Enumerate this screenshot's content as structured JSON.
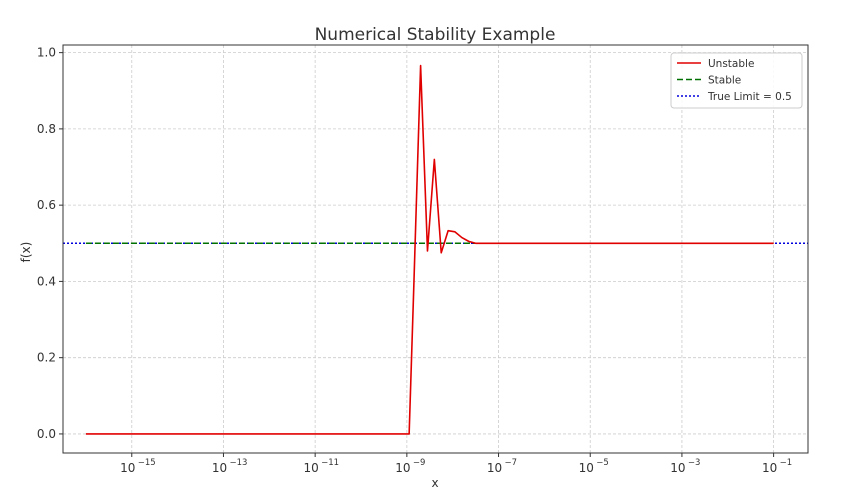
{
  "chart_data": {
    "type": "line",
    "title": "Numerical Stability Example",
    "xlabel": "x",
    "ylabel": "f(x)",
    "xscale": "log",
    "xlim_exponent": [
      -16.5,
      -0.25
    ],
    "ylim": [
      -0.05,
      1.02
    ],
    "x_tick_exponents": [
      -15,
      -13,
      -11,
      -9,
      -7,
      -5,
      -3,
      -1
    ],
    "x_tick_labels": [
      "10",
      "10",
      "10",
      "10",
      "10",
      "10",
      "10",
      "10"
    ],
    "x_tick_superscripts": [
      "−15",
      "−13",
      "−11",
      "−9",
      "−7",
      "−5",
      "−3",
      "−1"
    ],
    "y_ticks": [
      0.0,
      0.2,
      0.4,
      0.6,
      0.8,
      1.0
    ],
    "y_tick_labels": [
      "0.0",
      "0.2",
      "0.4",
      "0.6",
      "0.8",
      "1.0"
    ],
    "grid": true,
    "legend_position": "top-right",
    "series": [
      {
        "name": "Unstable",
        "color": "#e00000",
        "style": "solid",
        "x_exponent": [
          -16.0,
          -14.0,
          -12.0,
          -10.0,
          -8.95,
          -8.85,
          -8.7,
          -8.55,
          -8.4,
          -8.25,
          -8.1,
          -7.95,
          -7.8,
          -7.65,
          -7.5,
          -7.35,
          -7.2,
          -7.05,
          -6.9,
          -6.75,
          -6.5,
          -6.0,
          -5.0,
          -4.0,
          -3.0,
          -2.0,
          -1.0
        ],
        "y": [
          0.0,
          0.0,
          0.0,
          0.0,
          0.0,
          0.38,
          0.966,
          0.48,
          0.72,
          0.475,
          0.533,
          0.53,
          0.515,
          0.505,
          0.5,
          0.5,
          0.5,
          0.5,
          0.5,
          0.5,
          0.5,
          0.5,
          0.5,
          0.5,
          0.5,
          0.5,
          0.5
        ]
      },
      {
        "name": "Stable",
        "color": "#007000",
        "style": "dashed",
        "x_exponent": [
          -16.0,
          -1.0
        ],
        "y": [
          0.5,
          0.5
        ]
      },
      {
        "name": "True Limit = 0.5",
        "color": "#0000dd",
        "style": "dotted",
        "x_exponent": [
          -16.5,
          -0.25
        ],
        "y": [
          0.5,
          0.5
        ]
      }
    ]
  }
}
